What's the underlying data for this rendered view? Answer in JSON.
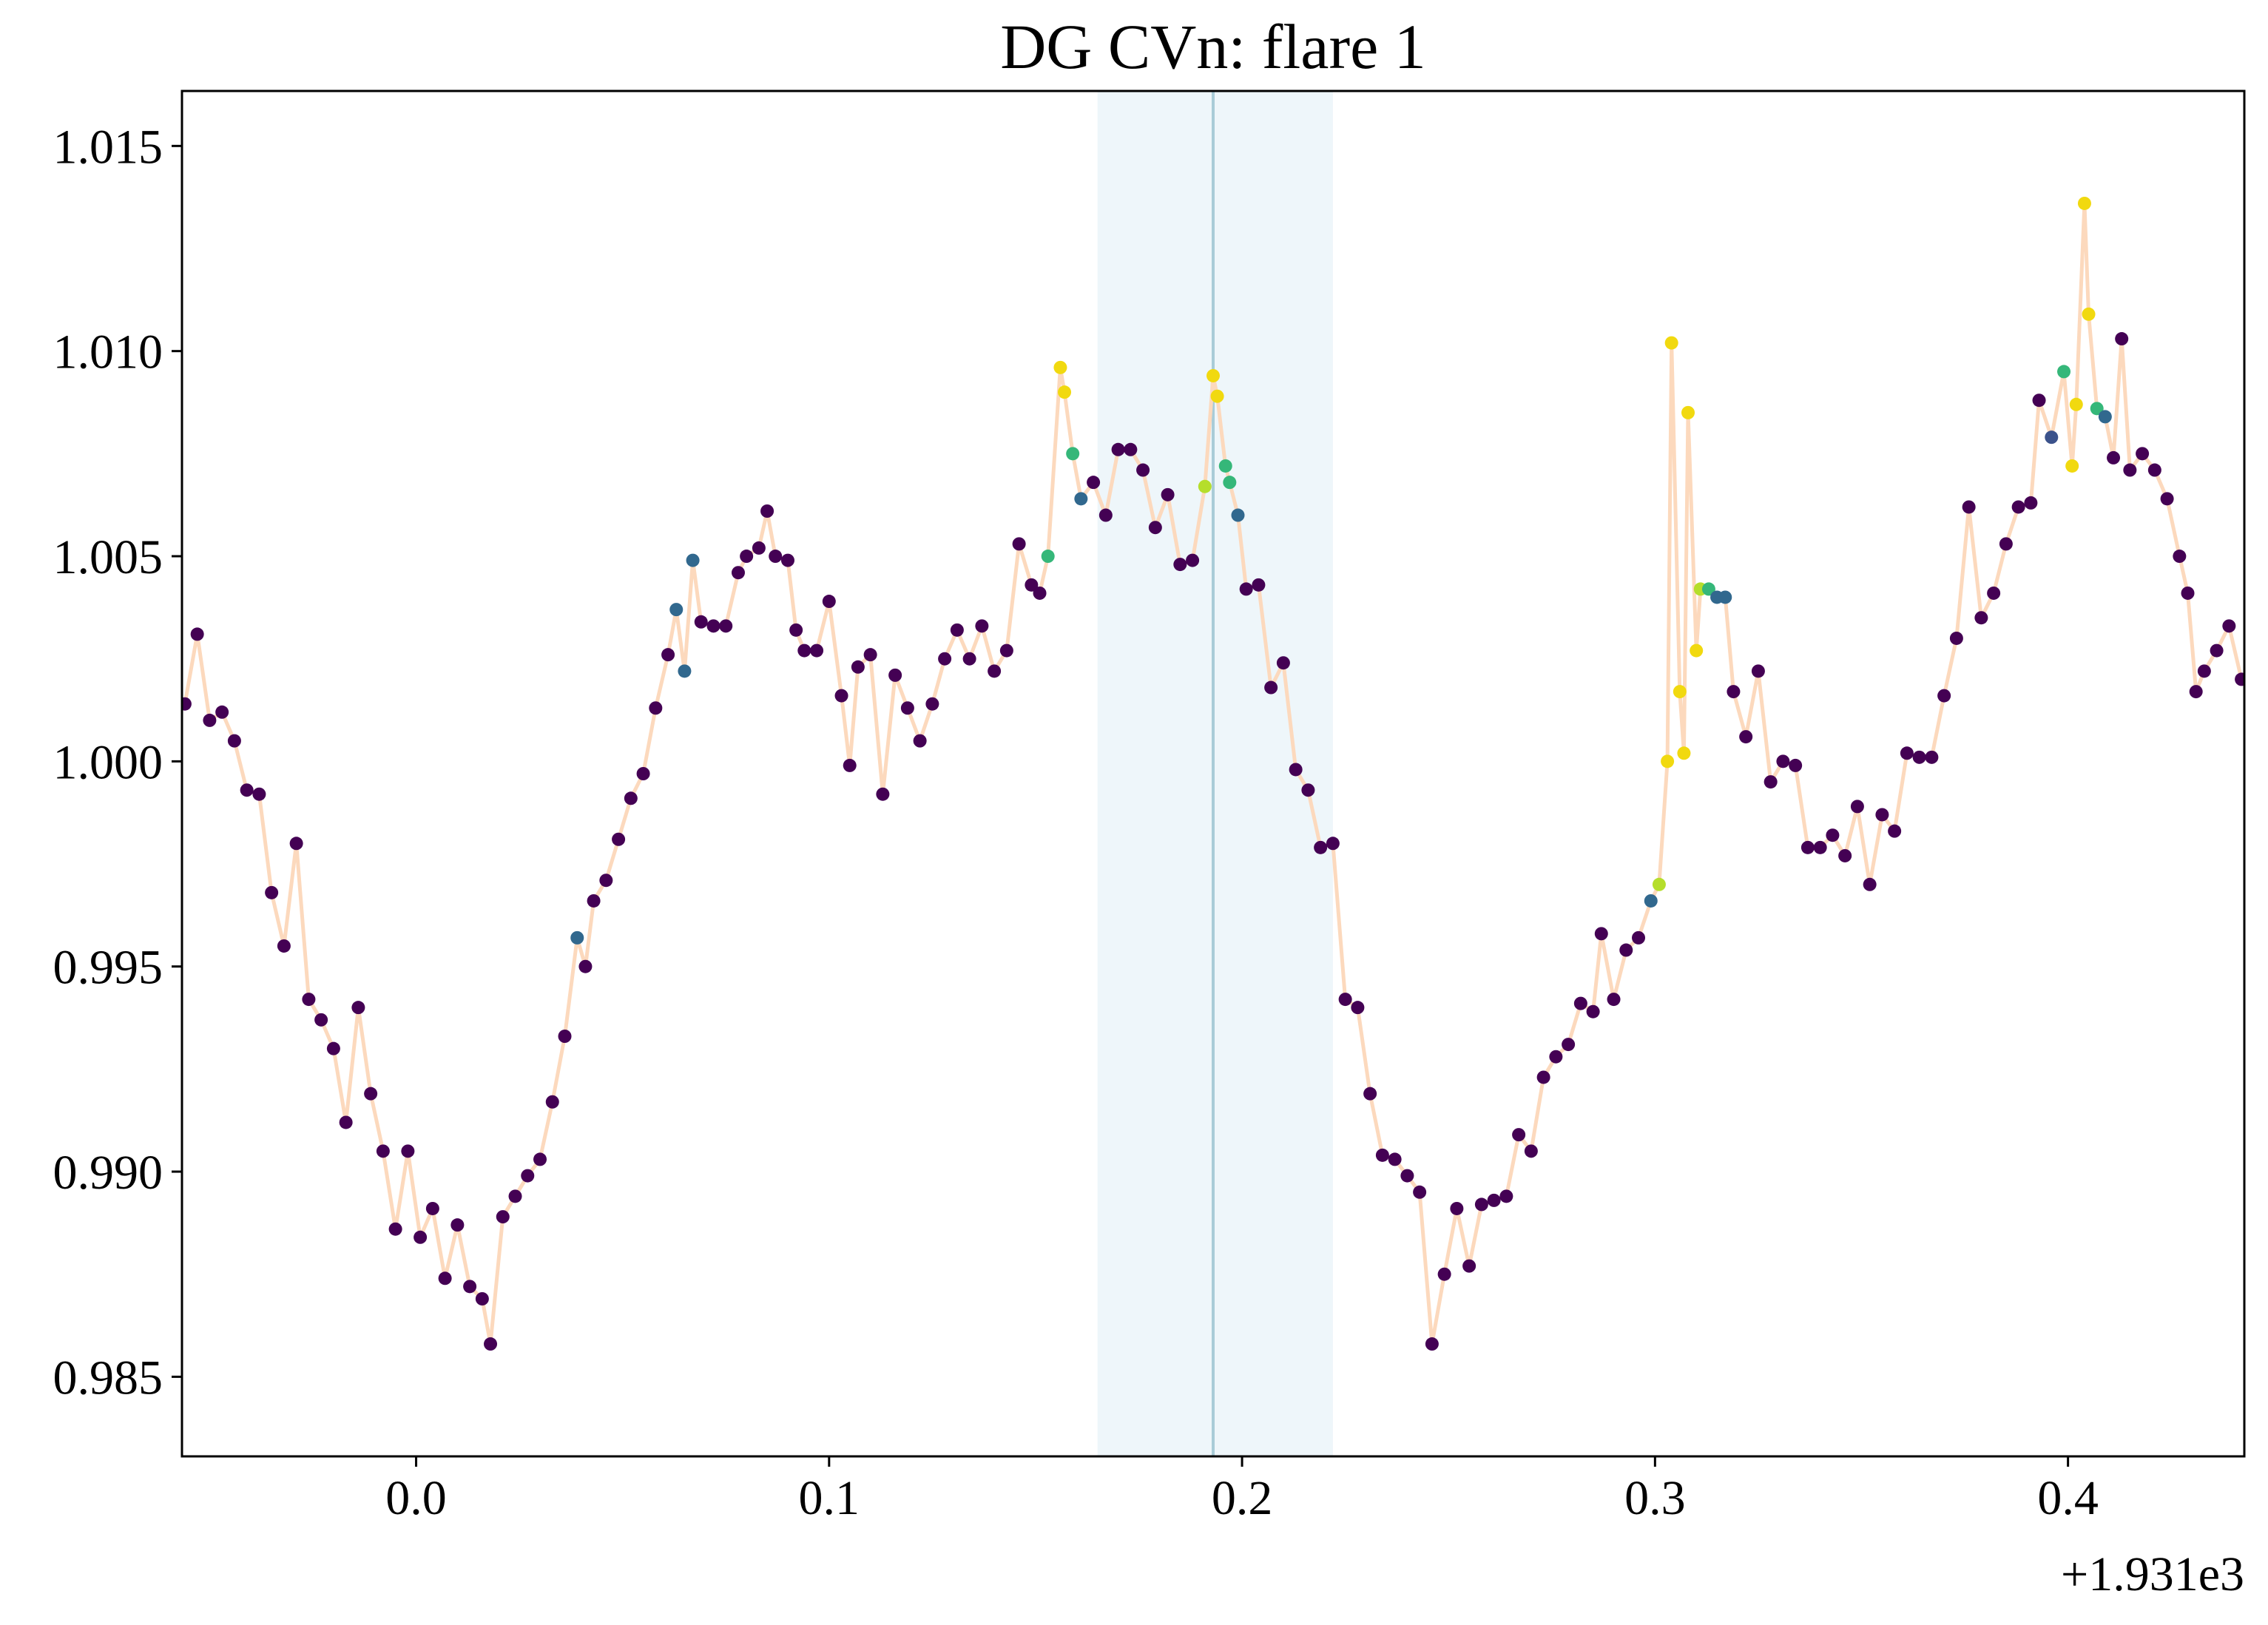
{
  "chart_data": {
    "type": "scatter",
    "title": "DG CVn: flare 1",
    "x_offset_label": "+1.931e3",
    "xlim": [
      -0.0567,
      0.4427
    ],
    "ylim": [
      0.98306,
      1.01634
    ],
    "xticks": [
      {
        "value": 0,
        "label": "0.0"
      },
      0.1,
      0.2,
      0.3,
      0.4
    ],
    "yticks": [
      0.985,
      {
        "value": 0.99,
        "label": "0.990"
      },
      0.995,
      {
        "value": 1,
        "label": "1.000"
      },
      1.005,
      {
        "value": 1.01,
        "label": "1.010"
      },
      1.015
    ],
    "grid": false,
    "line_color": "#fcd9bd",
    "span": [
      0.165,
      0.222
    ],
    "span_color": "#eef6fa",
    "vline": 0.193,
    "vline_color": "#a9ccd8",
    "x": [
      -0.056,
      -0.053,
      -0.05,
      -0.047,
      -0.044,
      -0.041,
      -0.038,
      -0.035,
      -0.032,
      -0.029,
      -0.026,
      -0.023,
      -0.02,
      -0.017,
      -0.014,
      -0.011,
      -0.008,
      -0.005,
      -0.002,
      0.001,
      0.004,
      0.007,
      0.01,
      0.013,
      0.016,
      0.018,
      0.021,
      0.024,
      0.027,
      0.03,
      0.033,
      0.036,
      0.039,
      0.041,
      0.043,
      0.046,
      0.049,
      0.052,
      0.055,
      0.058,
      0.061,
      0.063,
      0.065,
      0.067,
      0.069,
      0.072,
      0.075,
      0.078,
      0.08,
      0.083,
      0.085,
      0.087,
      0.09,
      0.092,
      0.094,
      0.097,
      0.1,
      0.103,
      0.105,
      0.107,
      0.11,
      0.113,
      0.116,
      0.119,
      0.122,
      0.125,
      0.128,
      0.131,
      0.134,
      0.137,
      0.14,
      0.143,
      0.146,
      0.149,
      0.151,
      0.153,
      0.156,
      0.157,
      0.159,
      0.161,
      0.164,
      0.167,
      0.17,
      0.173,
      0.176,
      0.179,
      0.182,
      0.185,
      0.188,
      0.191,
      0.193,
      0.194,
      0.196,
      0.197,
      0.199,
      0.201,
      0.204,
      0.207,
      0.21,
      0.213,
      0.216,
      0.219,
      0.222,
      0.225,
      0.228,
      0.231,
      0.234,
      0.237,
      0.24,
      0.243,
      0.246,
      0.249,
      0.252,
      0.255,
      0.258,
      0.261,
      0.264,
      0.267,
      0.27,
      0.273,
      0.276,
      0.279,
      0.282,
      0.285,
      0.287,
      0.29,
      0.293,
      0.296,
      0.299,
      0.301,
      0.303,
      0.304,
      0.306,
      0.307,
      0.308,
      0.31,
      0.311,
      0.313,
      0.315,
      0.317,
      0.319,
      0.322,
      0.325,
      0.328,
      0.331,
      0.334,
      0.337,
      0.34,
      0.343,
      0.346,
      0.349,
      0.352,
      0.355,
      0.358,
      0.361,
      0.364,
      0.367,
      0.37,
      0.373,
      0.376,
      0.379,
      0.382,
      0.385,
      0.388,
      0.391,
      0.393,
      0.396,
      0.399,
      0.401,
      0.402,
      0.404,
      0.405,
      0.407,
      0.409,
      0.411,
      0.413,
      0.415,
      0.418,
      0.421,
      0.424,
      0.427,
      0.429,
      0.431,
      0.433,
      0.436,
      0.439,
      0.442
    ],
    "values": [
      1.0014,
      1.0031,
      1.001,
      1.0012,
      1.0005,
      0.9993,
      0.9992,
      0.9968,
      0.9955,
      0.998,
      0.9942,
      0.9937,
      0.993,
      0.9912,
      0.994,
      0.9919,
      0.9905,
      0.9886,
      0.9905,
      0.9884,
      0.9891,
      0.9874,
      0.9887,
      0.9872,
      0.9869,
      0.9858,
      0.9889,
      0.9894,
      0.9899,
      0.9903,
      0.9917,
      0.9933,
      0.9957,
      0.995,
      0.9966,
      0.9971,
      0.9981,
      0.9991,
      0.9997,
      1.0013,
      1.0026,
      1.0037,
      1.0022,
      1.0049,
      1.0034,
      1.0033,
      1.0033,
      1.0046,
      1.005,
      1.0052,
      1.0061,
      1.005,
      1.0049,
      1.0032,
      1.0027,
      1.0027,
      1.0039,
      1.0016,
      0.9999,
      1.0023,
      1.0026,
      0.9992,
      1.0021,
      1.0013,
      1.0005,
      1.0014,
      1.0025,
      1.0032,
      1.0025,
      1.0033,
      1.0022,
      1.0027,
      1.0053,
      1.0043,
      1.0041,
      1.005,
      1.0096,
      1.009,
      1.0075,
      1.0064,
      1.0068,
      1.006,
      1.0076,
      1.0076,
      1.0071,
      1.0057,
      1.0065,
      1.0048,
      1.0049,
      1.0067,
      1.0094,
      1.0089,
      1.0072,
      1.0068,
      1.006,
      1.0042,
      1.0043,
      1.0018,
      1.0024,
      0.9998,
      0.9993,
      0.9979,
      0.998,
      0.9942,
      0.994,
      0.9919,
      0.9904,
      0.9903,
      0.9899,
      0.9895,
      0.9858,
      0.9875,
      0.9891,
      0.9877,
      0.9892,
      0.9893,
      0.9894,
      0.9909,
      0.9905,
      0.9923,
      0.9928,
      0.9931,
      0.9941,
      0.9939,
      0.9958,
      0.9942,
      0.9954,
      0.9957,
      0.9966,
      0.997,
      1.0,
      1.0102,
      1.0017,
      1.0002,
      1.0085,
      1.0027,
      1.0042,
      1.0042,
      1.004,
      1.004,
      1.0017,
      1.0006,
      1.0022,
      0.9995,
      1.0,
      0.9999,
      0.9979,
      0.9979,
      0.9982,
      0.9977,
      0.9989,
      0.997,
      0.9987,
      0.9983,
      1.0002,
      1.0001,
      1.0001,
      1.0016,
      1.003,
      1.0062,
      1.0035,
      1.0041,
      1.0053,
      1.0062,
      1.0063,
      1.0088,
      1.0079,
      1.0095,
      1.0072,
      1.0087,
      1.0136,
      1.0109,
      1.0086,
      1.0084,
      1.0074,
      1.0103,
      1.0071,
      1.0075,
      1.0071,
      1.0064,
      1.005,
      1.0041,
      1.0017,
      1.0022,
      1.0027,
      1.0033,
      1.002
    ],
    "point_colors": [
      "#440154",
      "#440154",
      "#440154",
      "#440154",
      "#440154",
      "#440154",
      "#440154",
      "#440154",
      "#440154",
      "#440154",
      "#440154",
      "#440154",
      "#440154",
      "#440154",
      "#440154",
      "#440154",
      "#440154",
      "#440154",
      "#440154",
      "#440154",
      "#440154",
      "#440154",
      "#440154",
      "#440154",
      "#440154",
      "#440154",
      "#440154",
      "#440154",
      "#440154",
      "#440154",
      "#440154",
      "#440154",
      "#31688e",
      "#440154",
      "#440154",
      "#440154",
      "#440154",
      "#440154",
      "#440154",
      "#440154",
      "#440154",
      "#31688e",
      "#31688e",
      "#31688e",
      "#440154",
      "#440154",
      "#440154",
      "#440154",
      "#440154",
      "#440154",
      "#440154",
      "#440154",
      "#440154",
      "#440154",
      "#440154",
      "#440154",
      "#440154",
      "#440154",
      "#440154",
      "#440154",
      "#440154",
      "#440154",
      "#440154",
      "#440154",
      "#440154",
      "#440154",
      "#440154",
      "#440154",
      "#440154",
      "#440154",
      "#440154",
      "#440154",
      "#440154",
      "#440154",
      "#440154",
      "#35b779",
      "#f1d90f",
      "#f1d90f",
      "#35b779",
      "#31688e",
      "#440154",
      "#440154",
      "#440154",
      "#440154",
      "#440154",
      "#440154",
      "#440154",
      "#440154",
      "#440154",
      "#b5de2b",
      "#f1d90f",
      "#f1d90f",
      "#35b779",
      "#35b779",
      "#31688e",
      "#440154",
      "#440154",
      "#440154",
      "#440154",
      "#440154",
      "#440154",
      "#440154",
      "#440154",
      "#440154",
      "#440154",
      "#440154",
      "#440154",
      "#440154",
      "#440154",
      "#440154",
      "#440154",
      "#440154",
      "#440154",
      "#440154",
      "#440154",
      "#440154",
      "#440154",
      "#440154",
      "#440154",
      "#440154",
      "#440154",
      "#440154",
      "#440154",
      "#440154",
      "#440154",
      "#440154",
      "#440154",
      "#440154",
      "#31688e",
      "#b5de2b",
      "#f1d90f",
      "#f1d90f",
      "#f1d90f",
      "#f1d90f",
      "#f1d90f",
      "#f1d90f",
      "#b5de2b",
      "#35b779",
      "#31688e",
      "#31688e",
      "#440154",
      "#440154",
      "#440154",
      "#440154",
      "#440154",
      "#440154",
      "#440154",
      "#440154",
      "#440154",
      "#440154",
      "#440154",
      "#440154",
      "#440154",
      "#440154",
      "#440154",
      "#440154",
      "#440154",
      "#440154",
      "#440154",
      "#440154",
      "#440154",
      "#440154",
      "#440154",
      "#440154",
      "#440154",
      "#440154",
      "#3b528b",
      "#35b779",
      "#f1d90f",
      "#f1d90f",
      "#f1d90f",
      "#f1d90f",
      "#35b779",
      "#31688e",
      "#440154",
      "#440154",
      "#440154",
      "#440154",
      "#440154",
      "#440154",
      "#440154",
      "#440154",
      "#440154",
      "#440154",
      "#440154",
      "#440154",
      "#440154"
    ]
  }
}
